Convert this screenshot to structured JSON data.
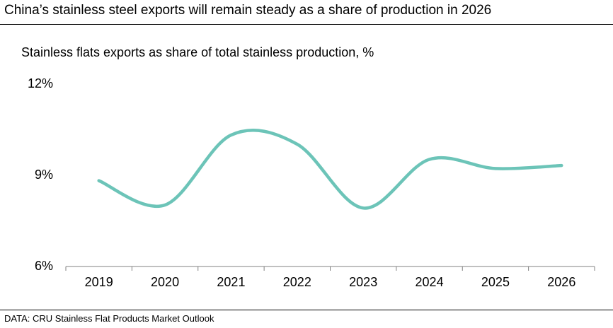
{
  "title": "China’s stainless steel exports will remain steady as a share of production in 2026",
  "subtitle": "Stainless flats exports as share of total stainless production, %",
  "footer": "DATA: CRU Stainless Flat Products Market Outlook",
  "chart_data": {
    "type": "line",
    "title": "China’s stainless steel exports will remain steady as a share of production in 2026",
    "ylabel": "Stainless flats exports as share of total stainless production, %",
    "xlabel": "",
    "categories": [
      "2019",
      "2020",
      "2021",
      "2022",
      "2023",
      "2024",
      "2025",
      "2026"
    ],
    "series": [
      {
        "name": "Stainless flats exports share",
        "values": [
          8.8,
          8.0,
          10.3,
          10.0,
          7.9,
          9.5,
          9.2,
          9.3
        ],
        "color": "#6cc4b8"
      }
    ],
    "ylim": [
      6,
      12
    ],
    "yticks": [
      6,
      9,
      12
    ],
    "ytick_labels": [
      "6%",
      "9%",
      "12%"
    ],
    "grid": false,
    "source": "DATA: CRU Stainless Flat Products Market Outlook"
  }
}
